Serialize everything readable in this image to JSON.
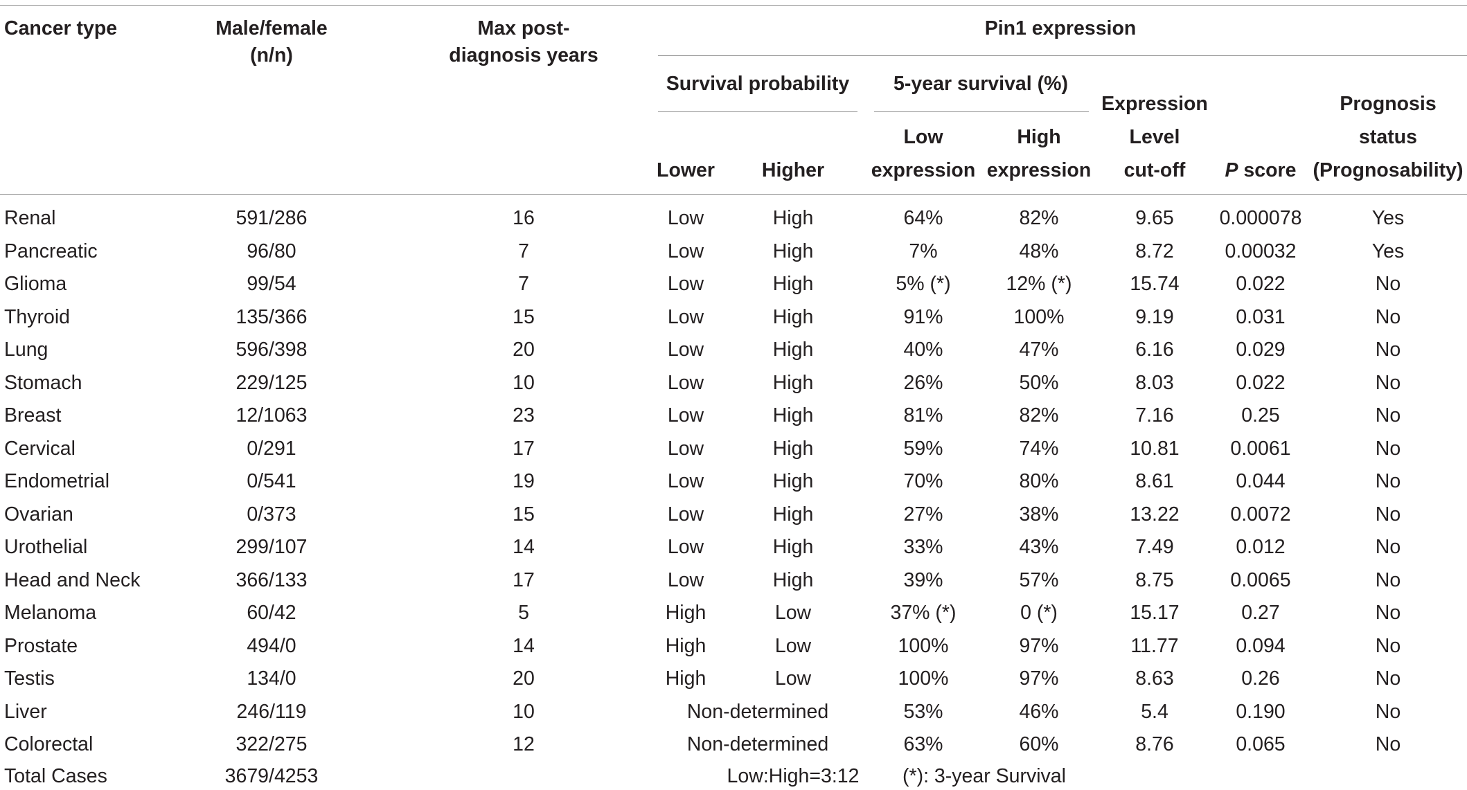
{
  "header": {
    "cancer_type": "Cancer type",
    "male_female_1": "Male/female",
    "male_female_2": "(n/n)",
    "max_years_1": "Max post-",
    "max_years_2": "diagnosis years",
    "pin1_expression": "Pin1 expression",
    "survival_probability": "Survival probability",
    "five_year_survival": "5-year survival (%)",
    "lower": "Lower",
    "higher": "Higher",
    "low_1": "Low",
    "low_2": "expression",
    "high_1": "High",
    "high_2": "expression",
    "expr_1": "Expression",
    "expr_2": "Level",
    "expr_3": "cut-off",
    "p_italic": "P",
    "p_rest": " score",
    "prog_1": "Prognosis",
    "prog_2": "status",
    "prog_3": "(Prognosability)"
  },
  "rows": [
    [
      "Renal",
      "591/286",
      "16",
      "Low",
      "High",
      "64%",
      "82%",
      "9.65",
      "0.000078",
      "Yes"
    ],
    [
      "Pancreatic",
      "96/80",
      "7",
      "Low",
      "High",
      "7%",
      "48%",
      "8.72",
      "0.00032",
      "Yes"
    ],
    [
      "Glioma",
      "99/54",
      "7",
      "Low",
      "High",
      "5% (*)",
      "12% (*)",
      "15.74",
      "0.022",
      "No"
    ],
    [
      "Thyroid",
      "135/366",
      "15",
      "Low",
      "High",
      "91%",
      "100%",
      "9.19",
      "0.031",
      "No"
    ],
    [
      "Lung",
      "596/398",
      "20",
      "Low",
      "High",
      "40%",
      "47%",
      "6.16",
      "0.029",
      "No"
    ],
    [
      "Stomach",
      "229/125",
      "10",
      "Low",
      "High",
      "26%",
      "50%",
      "8.03",
      "0.022",
      "No"
    ],
    [
      "Breast",
      "12/1063",
      "23",
      "Low",
      "High",
      "81%",
      "82%",
      "7.16",
      "0.25",
      "No"
    ],
    [
      "Cervical",
      "0/291",
      "17",
      "Low",
      "High",
      "59%",
      "74%",
      "10.81",
      "0.0061",
      "No"
    ],
    [
      "Endometrial",
      "0/541",
      "19",
      "Low",
      "High",
      "70%",
      "80%",
      "8.61",
      "0.044",
      "No"
    ],
    [
      "Ovarian",
      "0/373",
      "15",
      "Low",
      "High",
      "27%",
      "38%",
      "13.22",
      "0.0072",
      "No"
    ],
    [
      "Urothelial",
      "299/107",
      "14",
      "Low",
      "High",
      "33%",
      "43%",
      "7.49",
      "0.012",
      "No"
    ],
    [
      "Head and Neck",
      "366/133",
      "17",
      "Low",
      "High",
      "39%",
      "57%",
      "8.75",
      "0.0065",
      "No"
    ],
    [
      "Melanoma",
      "60/42",
      "5",
      "High",
      "Low",
      "37% (*)",
      "0 (*)",
      "15.17",
      "0.27",
      "No"
    ],
    [
      "Prostate",
      "494/0",
      "14",
      "High",
      "Low",
      "100%",
      "97%",
      "11.77",
      "0.094",
      "No"
    ],
    [
      "Testis",
      "134/0",
      "20",
      "High",
      "Low",
      "100%",
      "97%",
      "8.63",
      "0.26",
      "No"
    ],
    [
      "Liver",
      "246/119",
      "10",
      "Non-determined",
      "",
      "53%",
      "46%",
      "5.4",
      "0.190",
      "No"
    ],
    [
      "Colorectal",
      "322/275",
      "12",
      "Non-determined",
      "",
      "63%",
      "60%",
      "8.76",
      "0.065",
      "No"
    ]
  ],
  "footer": {
    "label": "Total Cases",
    "total": "3679/4253",
    "ratio": "Low:High=3:12",
    "note": "(*): 3-year Survival"
  }
}
